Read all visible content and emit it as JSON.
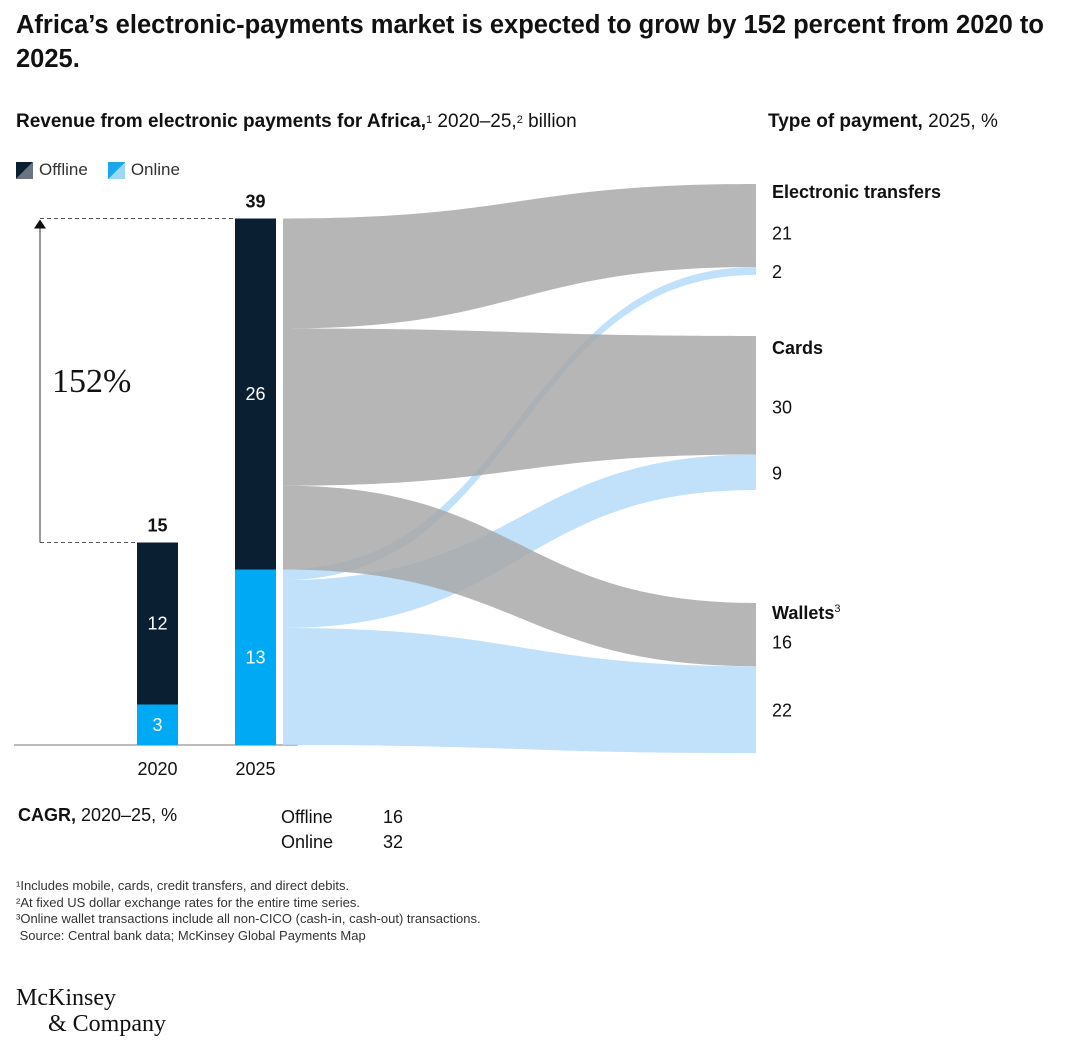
{
  "title": "Africa’s electronic-payments market is expected to grow by 152 percent from 2020 to 2025.",
  "left_subtitle": {
    "bold": "Revenue from electronic payments for Africa,",
    "sup1": "1",
    "rest1": " 2020–25,",
    "sup2": "2",
    "rest2": " billion"
  },
  "right_subtitle": {
    "bold": "Type of payment,",
    "rest": " 2025, %"
  },
  "legend": {
    "offline": "Offline",
    "online": "Online"
  },
  "colors": {
    "offline": "#0b1f33",
    "online": "#00a9f4",
    "flow_offline": "#a6a6a6",
    "flow_online": "#b5dcf8",
    "text": "#111111"
  },
  "chart_data": {
    "type": "bar",
    "subtype": "stacked bar with sankey flow",
    "categories": [
      "2020",
      "2025"
    ],
    "series": [
      {
        "name": "Offline",
        "values": [
          12,
          26
        ]
      },
      {
        "name": "Online",
        "values": [
          3,
          13
        ]
      }
    ],
    "totals": [
      15,
      39
    ],
    "growth_label": "152%",
    "flows": [
      {
        "from": "Offline",
        "to": "Electronic transfers",
        "value": 21
      },
      {
        "from": "Offline",
        "to": "Cards",
        "value": 30
      },
      {
        "from": "Offline",
        "to": "Wallets",
        "value": 16
      },
      {
        "from": "Online",
        "to": "Electronic transfers",
        "value": 2
      },
      {
        "from": "Online",
        "to": "Cards",
        "value": 9
      },
      {
        "from": "Online",
        "to": "Wallets",
        "value": 22
      }
    ],
    "categories_right": [
      {
        "name": "Electronic transfers",
        "sup": "",
        "offline": 21,
        "online": 2
      },
      {
        "name": "Cards",
        "sup": "",
        "offline": 30,
        "online": 9
      },
      {
        "name": "Wallets",
        "sup": "3",
        "offline": 16,
        "online": 22
      }
    ]
  },
  "cagr": {
    "label_bold": "CAGR,",
    "label_rest": " 2020–25, %",
    "rows": [
      {
        "name": "Offline",
        "value": "16"
      },
      {
        "name": "Online",
        "value": "32"
      }
    ]
  },
  "footnotes": [
    "¹Includes mobile, cards, credit transfers, and direct debits.",
    "²At fixed US dollar exchange rates for the entire time series.",
    "³Online wallet transactions include all non-CICO (cash-in, cash-out) transactions.",
    " Source: Central bank data; McKinsey Global Payments Map"
  ],
  "brand": {
    "line1": "McKinsey",
    "line2": "& Company"
  }
}
